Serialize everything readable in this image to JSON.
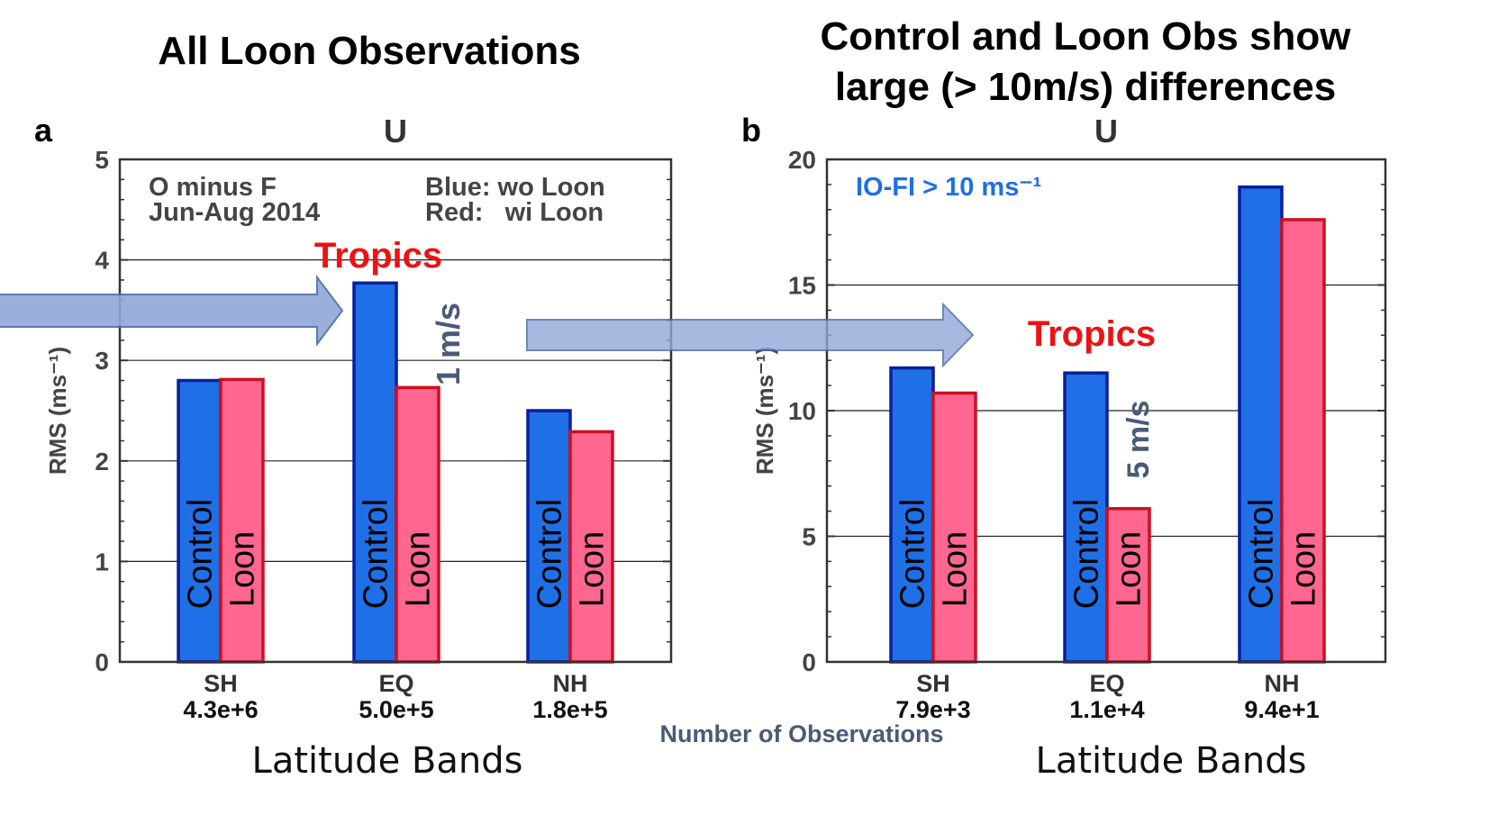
{
  "header": {
    "left_title": "All Loon Observations",
    "right_title_line1": "Control and Loon Obs show",
    "right_title_line2": "large (> 10m/s) differences"
  },
  "footer": {
    "xlabel_left": "Latitude Bands",
    "xlabel_right": "Latitude Bands",
    "obs_note": "Number of Observations"
  },
  "colors": {
    "control_fill": "#1f6fe6",
    "control_edge": "#0a1f9a",
    "loon_fill": "#ff6690",
    "loon_edge": "#cc1020",
    "arrow_fill": "#90a8d6",
    "arrow_edge": "#4d6aa8",
    "annotation_red": "#ee1111",
    "diff_label": "#4a5a78"
  },
  "chart_data": [
    {
      "type": "bar",
      "panel_label": "a",
      "title": "U",
      "ylabel": "RMS (ms⁻¹)",
      "ylim": [
        0,
        5
      ],
      "yticks": [
        "0",
        "1",
        "2",
        "3",
        "4",
        "5"
      ],
      "grid": true,
      "categories": [
        "SH",
        "EQ",
        "NH"
      ],
      "counts": [
        "4.3e+6",
        "5.0e+5",
        "1.8e+5"
      ],
      "series": [
        {
          "name": "Control",
          "values": [
            2.8,
            3.77,
            2.5
          ]
        },
        {
          "name": "Loon",
          "values": [
            2.81,
            2.73,
            2.29
          ]
        }
      ],
      "annotations": {
        "text1": "O minus F",
        "text2": "Jun-Aug 2014",
        "text3": "Blue: wo Loon",
        "text4": "Red:   wi Loon",
        "tropics": "Tropics",
        "diff": "1 m/s"
      }
    },
    {
      "type": "bar",
      "panel_label": "b",
      "title": "U",
      "ylabel": "RMS (ms⁻¹)",
      "ylim": [
        0,
        20
      ],
      "yticks": [
        "0",
        "5",
        "10",
        "15",
        "20"
      ],
      "grid": true,
      "categories": [
        "SH",
        "EQ",
        "NH"
      ],
      "counts": [
        "7.9e+3",
        "1.1e+4",
        "9.4e+1"
      ],
      "series": [
        {
          "name": "Control",
          "values": [
            11.7,
            11.5,
            18.9
          ]
        },
        {
          "name": "Loon",
          "values": [
            10.7,
            6.1,
            17.6
          ]
        }
      ],
      "annotations": {
        "condition": "IO-FI > 10 ms⁻¹",
        "tropics": "Tropics",
        "diff": "5 m/s"
      }
    }
  ]
}
